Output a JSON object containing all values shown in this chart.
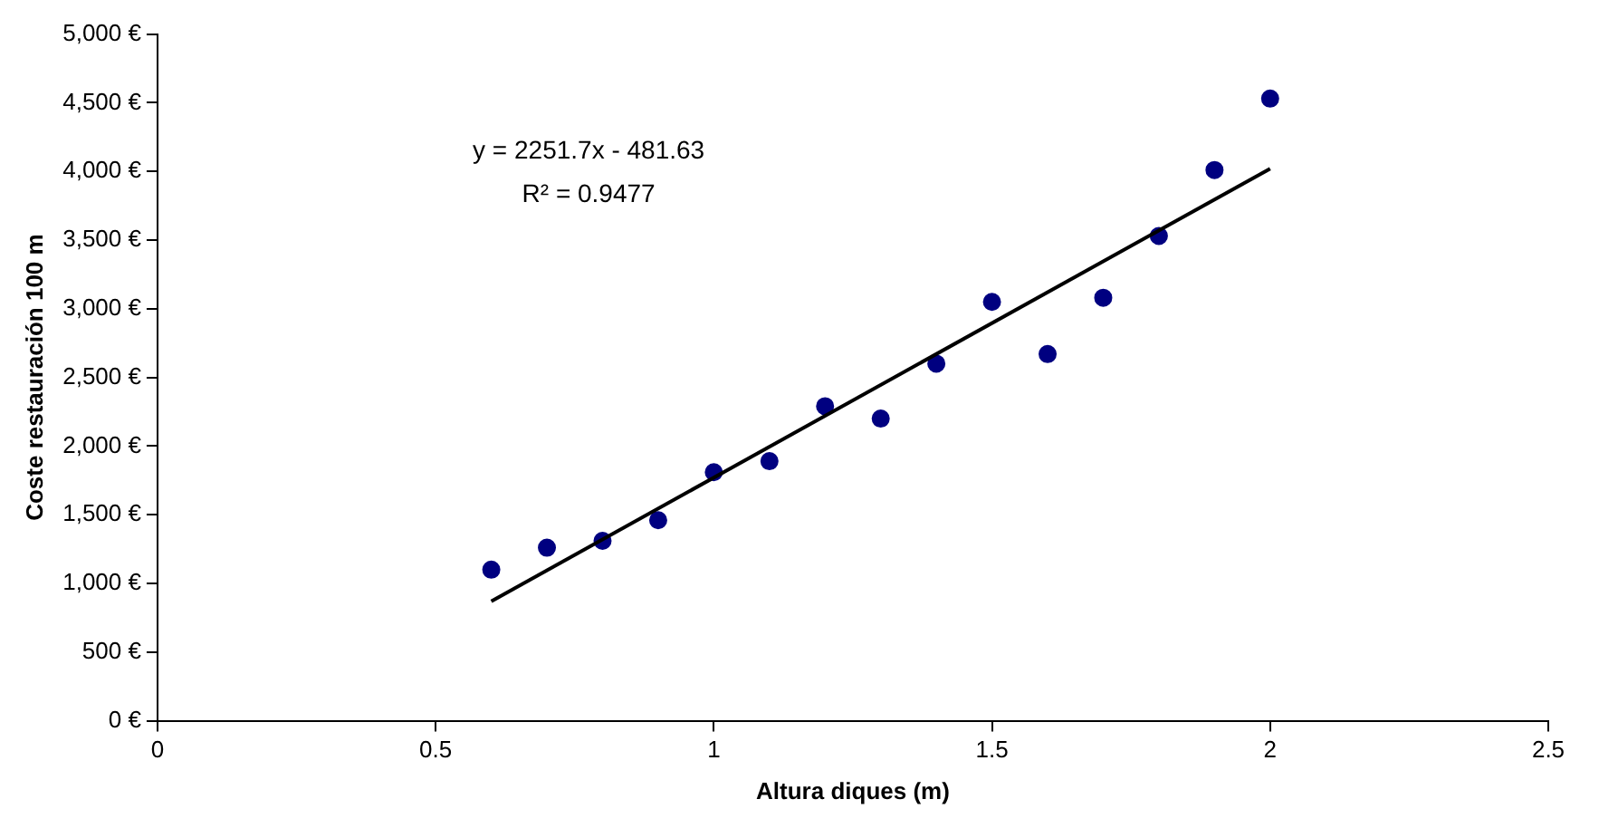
{
  "chart_data": {
    "type": "scatter",
    "xlabel": "Altura diques (m)",
    "ylabel": "Coste restauración 100 m",
    "xlim": [
      0,
      2.5
    ],
    "xticks": [
      0,
      0.5,
      1,
      1.5,
      2,
      2.5
    ],
    "ylim": [
      0,
      5000
    ],
    "yticks": [
      {
        "value": 0,
        "label": "0 €"
      },
      {
        "value": 500,
        "label": "500 €"
      },
      {
        "value": 1000,
        "label": "1,000 €"
      },
      {
        "value": 1500,
        "label": "1,500 €"
      },
      {
        "value": 2000,
        "label": "2,000 €"
      },
      {
        "value": 2500,
        "label": "2,500 €"
      },
      {
        "value": 3000,
        "label": "3,000 €"
      },
      {
        "value": 3500,
        "label": "3,500 €"
      },
      {
        "value": 4000,
        "label": "4,000 €"
      },
      {
        "value": 4500,
        "label": "4,500 €"
      },
      {
        "value": 5000,
        "label": "5,000 €"
      }
    ],
    "grid": false,
    "legend": false,
    "series": [
      {
        "marker": "circle",
        "color": "#000080",
        "x": [
          0.6,
          0.7,
          0.8,
          0.9,
          1.0,
          1.1,
          1.2,
          1.3,
          1.4,
          1.5,
          1.6,
          1.7,
          1.8,
          1.9,
          2.0
        ],
        "values": [
          1100,
          1260,
          1310,
          1460,
          1810,
          1890,
          2290,
          2200,
          2600,
          3050,
          2670,
          3080,
          3530,
          4010,
          4530
        ]
      },
      {
        "type": "line",
        "marker": "none",
        "color": "#000000",
        "x": [
          0.6,
          2.0
        ],
        "values": [
          870,
          4020
        ]
      }
    ],
    "annotations": [
      "y = 2251.7x - 481.63",
      "R² = 0.9477"
    ]
  }
}
